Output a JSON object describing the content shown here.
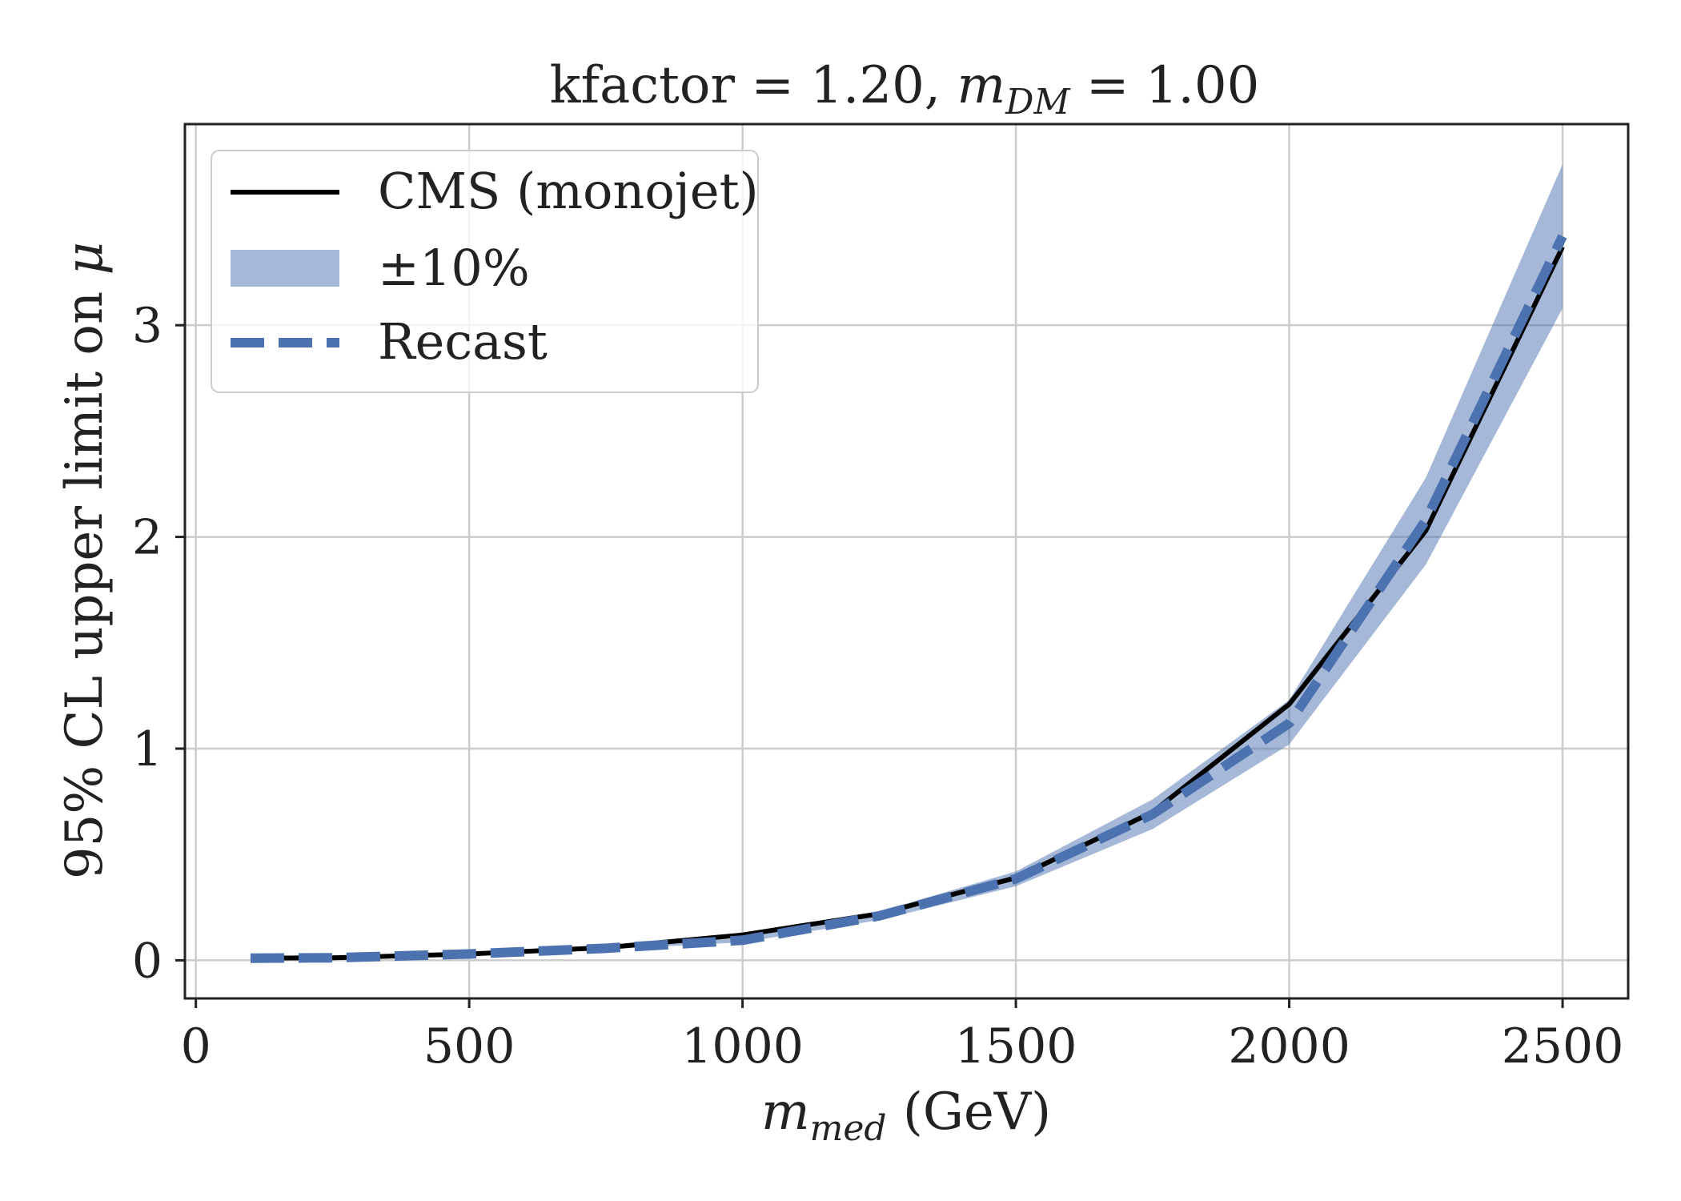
{
  "chart_data": {
    "type": "line",
    "title": {
      "prefix": "kfactor = 1.20, ",
      "var": "m",
      "sub": "DM",
      "suffix": " = 1.00"
    },
    "xlabel": {
      "var": "m",
      "sub": "med",
      "suffix": " (GeV)"
    },
    "ylabel": {
      "prefix": "95% CL upper limit on ",
      "var": "μ"
    },
    "xlim": [
      -20,
      2620
    ],
    "ylim": [
      -0.18,
      3.95
    ],
    "xticks": [
      0,
      500,
      1000,
      1500,
      2000,
      2500
    ],
    "yticks": [
      0,
      1,
      2,
      3
    ],
    "grid": true,
    "legend_position": "top-left",
    "x": [
      100,
      250,
      500,
      750,
      1000,
      1250,
      1500,
      1750,
      2000,
      2250,
      2500
    ],
    "series": [
      {
        "name": "CMS (monojet)",
        "style": "solid",
        "color": "#000000",
        "values": [
          0.01,
          0.012,
          0.03,
          0.06,
          0.12,
          0.22,
          0.39,
          0.7,
          1.21,
          2.03,
          3.37
        ]
      },
      {
        "name": "±10%",
        "style": "band",
        "color": "#4c72b0",
        "lower": [
          0.009,
          0.011,
          0.027,
          0.052,
          0.085,
          0.19,
          0.35,
          0.62,
          1.02,
          1.87,
          3.08
        ],
        "upper": [
          0.011,
          0.013,
          0.033,
          0.063,
          0.105,
          0.23,
          0.42,
          0.76,
          1.23,
          2.28,
          3.76
        ]
      },
      {
        "name": "Recast",
        "style": "dashed",
        "color": "#4c72b0",
        "values": [
          0.01,
          0.012,
          0.03,
          0.057,
          0.095,
          0.21,
          0.385,
          0.69,
          1.12,
          2.08,
          3.42
        ]
      }
    ]
  }
}
